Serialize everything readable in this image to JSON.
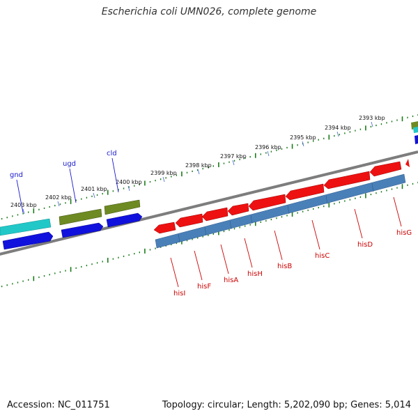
{
  "title": "Escherichia coli UMN026, complete genome",
  "footer": {
    "accession": "Accession: NC_011751",
    "stats": "Topology: circular; Length: 5,202,090 bp; Genes: 5,014"
  },
  "colors": {
    "backbone": "#7d7d7d",
    "tick": "#1a7a1a",
    "gene_label_blue": "#1a1acd",
    "gene_label_red": "#cc0000",
    "cds_red": "#ee1111",
    "gene_steel": "#4a80b8",
    "gene_cyan": "#22c8c8",
    "gene_olive": "#6e8a22",
    "gene_blue": "#1111dd"
  },
  "scale_labels": [
    "2403 kbp",
    "2402 kbp",
    "2401 kbp",
    "2400 kbp",
    "2399 kbp",
    "2398 kbp",
    "2397 kbp",
    "2396 kbp",
    "2395 kbp",
    "2394 kbp",
    "2393 kbp"
  ],
  "gene_labels_upper": [
    "gnd",
    "ugd",
    "cld"
  ],
  "gene_labels_lower": [
    "hisI",
    "hisF",
    "hisA",
    "hisH",
    "hisB",
    "hisC",
    "hisD",
    "hisG"
  ]
}
